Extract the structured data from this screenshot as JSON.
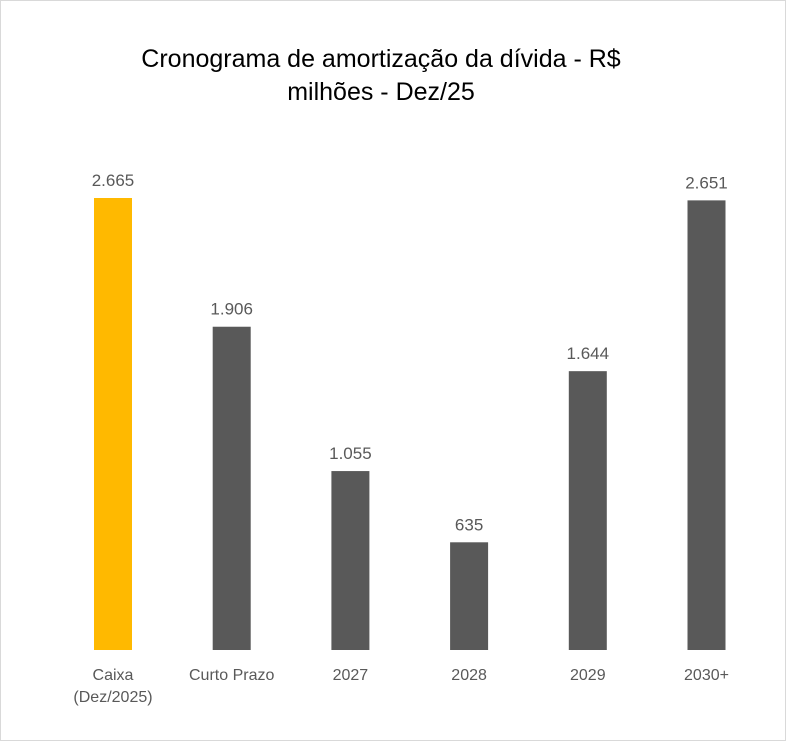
{
  "chart_data": {
    "type": "bar",
    "title_line1": "Cronograma de amortização da dívida - R$",
    "title_line2": "milhões - Dez/25",
    "categories": [
      [
        "Caixa",
        "(Dez/2025)"
      ],
      [
        "Curto Prazo"
      ],
      [
        "2027"
      ],
      [
        "2028"
      ],
      [
        "2029"
      ],
      [
        "2030+"
      ]
    ],
    "values": [
      2665,
      1906,
      1055,
      635,
      1644,
      2651
    ],
    "value_labels": [
      "2.665",
      "1.906",
      "1.055",
      "635",
      "1.644",
      "2.651"
    ],
    "colors": [
      "#FFB900",
      "#595959",
      "#595959",
      "#595959",
      "#595959",
      "#595959"
    ],
    "xlabel": "",
    "ylabel": "",
    "ylim": [
      0,
      2665
    ],
    "grid": false
  }
}
